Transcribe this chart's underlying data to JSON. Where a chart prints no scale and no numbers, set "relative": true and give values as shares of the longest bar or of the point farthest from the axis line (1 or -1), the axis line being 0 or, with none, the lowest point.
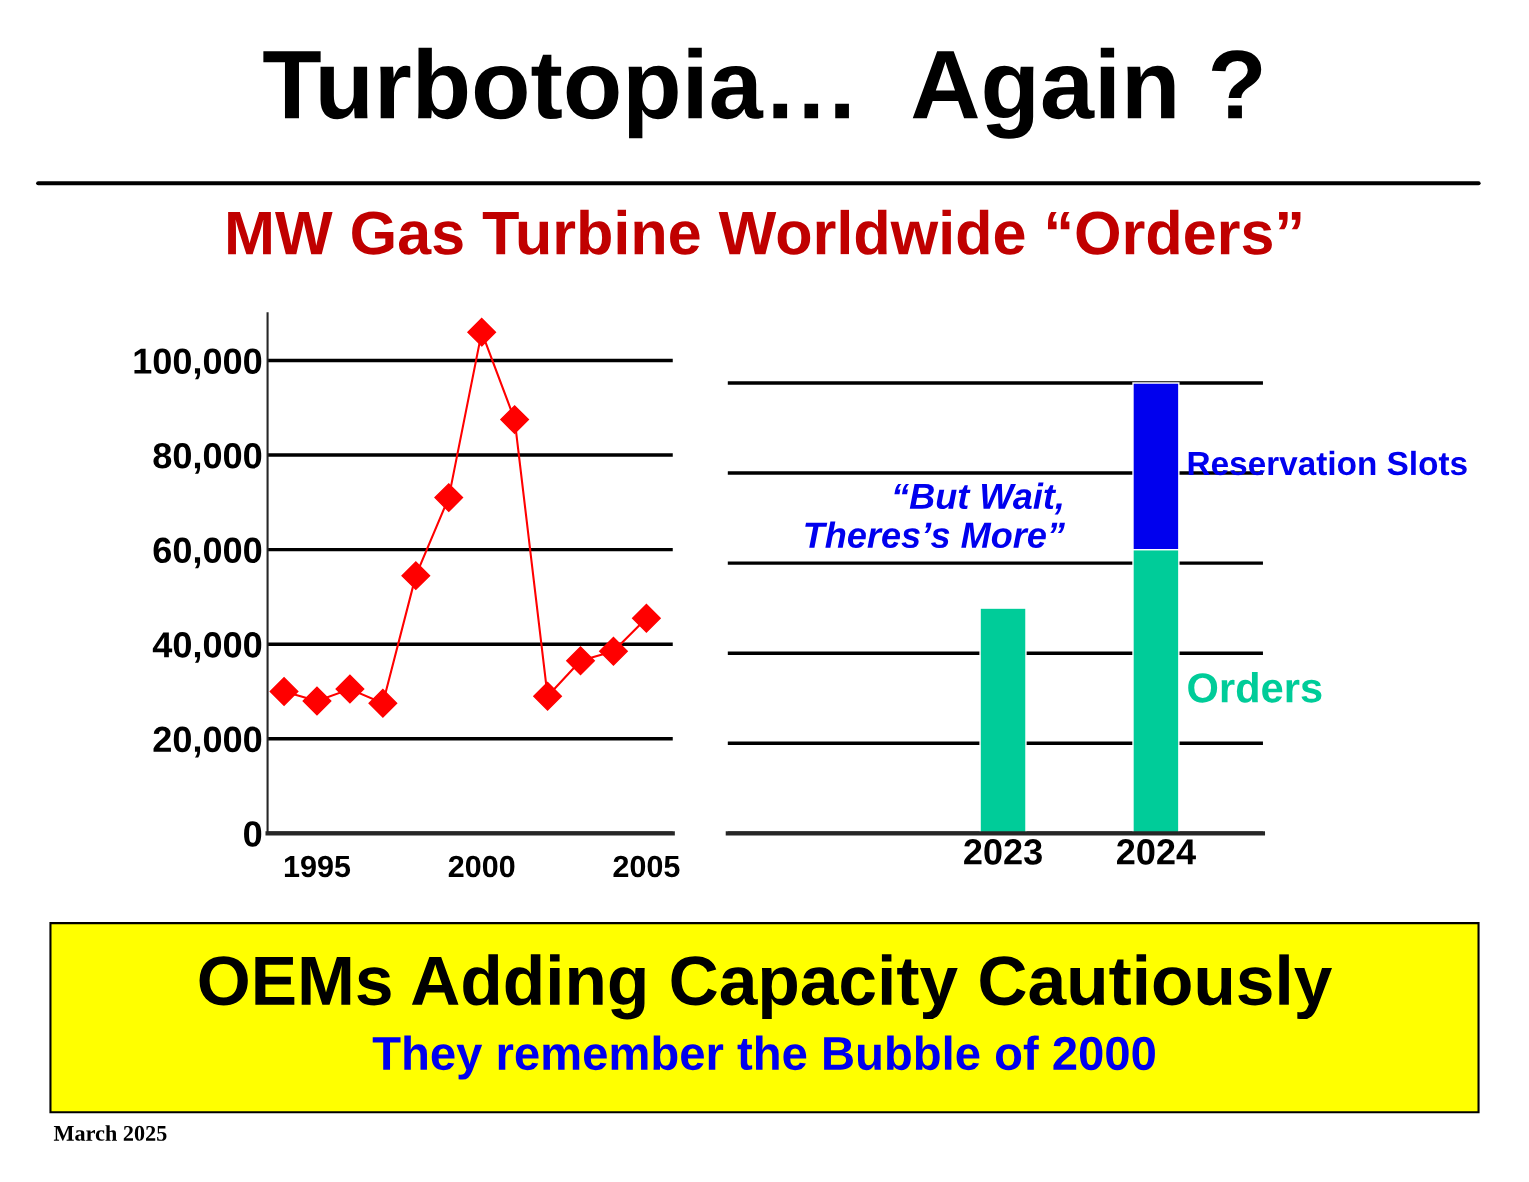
{
  "chart_data": [
    {
      "type": "line",
      "title": "Turbotopia…  Again ?",
      "subtitle": "MW Gas Turbine Worldwide “Orders”",
      "x": [
        1994,
        1995,
        1996,
        1997,
        1998,
        1999,
        2000,
        2001,
        2002,
        2003,
        2004,
        2005
      ],
      "series": [
        {
          "color": "#ff0000",
          "values": [
            30000,
            28000,
            30500,
            27500,
            54500,
            71000,
            106000,
            87500,
            29000,
            36500,
            38500,
            45500
          ]
        }
      ],
      "xlim": [
        1993.5,
        2005.8
      ],
      "xticks": [
        1995,
        2000,
        2005
      ],
      "ylim": [
        0,
        110000
      ],
      "yticks": [
        {
          "value": 0,
          "label": "0"
        },
        {
          "value": 20000,
          "label": "20,000"
        },
        {
          "value": 40000,
          "label": "40,000"
        },
        {
          "value": 60000,
          "label": "60,000"
        },
        {
          "value": 80000,
          "label": "80,000"
        },
        {
          "value": 100000,
          "label": "100,000"
        }
      ],
      "grid": "y",
      "marker": "diamond",
      "line_style": "solid",
      "annotations": [
        "OEMs Adding Capacity Cautiously",
        "They remember the Bubble of 2000",
        "March 2025"
      ]
    },
    {
      "type": "bar",
      "stacked": true,
      "categories": [
        "2023",
        "2024"
      ],
      "series": [
        {
          "name": "Orders",
          "color": "#00cc99",
          "values": [
            0.5,
            0.63
          ]
        },
        {
          "name": "Reservation Slots",
          "color": "#0000ee",
          "values": [
            null,
            0.37
          ]
        }
      ],
      "relative": true,
      "grid": "y",
      "tick_labels": "x",
      "annotations": [
        "“But Wait,\nTheres’s More”"
      ]
    }
  ]
}
